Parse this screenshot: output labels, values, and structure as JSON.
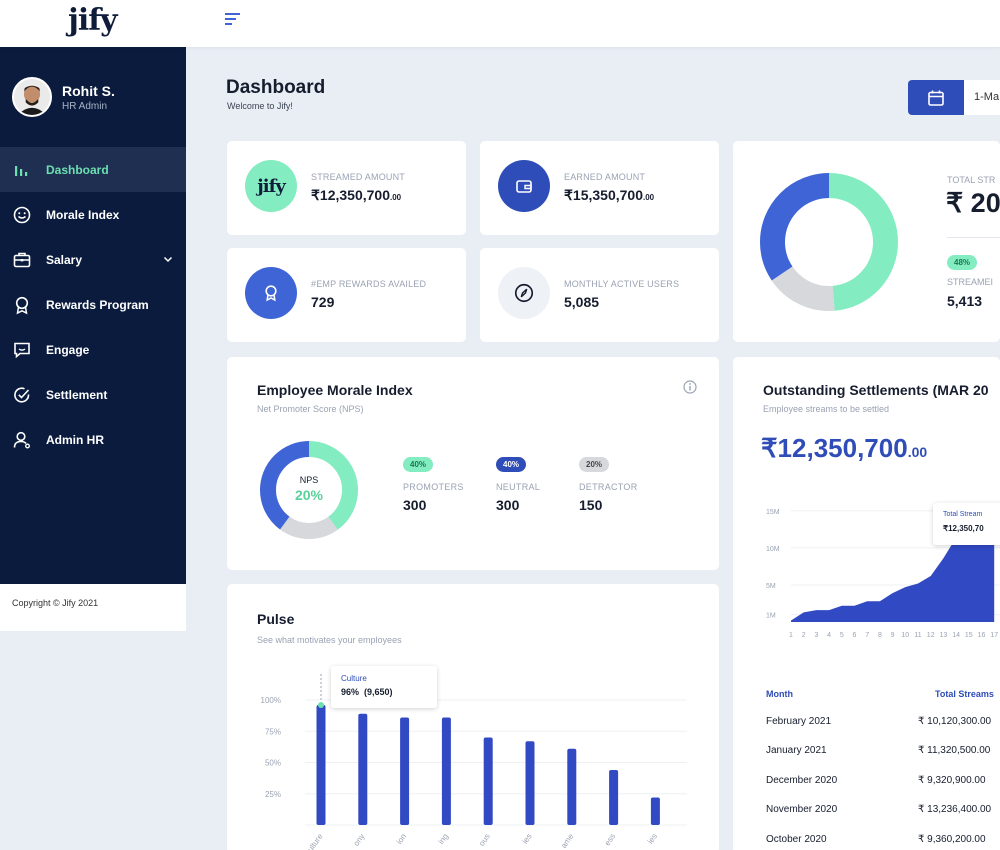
{
  "app": {
    "logo": "jify"
  },
  "sidebar": {
    "profile": {
      "name": "Rohit S.",
      "role": "HR Admin"
    },
    "items": [
      {
        "label": "Dashboard",
        "icon": "bar-chart-icon",
        "active": true
      },
      {
        "label": "Morale Index",
        "icon": "smiley-icon"
      },
      {
        "label": "Salary",
        "icon": "briefcase-icon",
        "has_submenu": true
      },
      {
        "label": "Rewards Program",
        "icon": "award-icon"
      },
      {
        "label": "Engage",
        "icon": "chat-icon"
      },
      {
        "label": "Settlement",
        "icon": "check-circle-icon"
      },
      {
        "label": "Admin HR",
        "icon": "user-icon"
      }
    ],
    "copyright": "Copyright © Jify 2021"
  },
  "header": {
    "title": "Dashboard",
    "subtitle": "Welcome to Jify!",
    "date_range": "1-Ma"
  },
  "stats": [
    {
      "label": "STREAMED AMOUNT",
      "value": "₹12,350,700",
      "decimals": ".00",
      "icon": "jify-logo-icon",
      "color": "#83ecc0"
    },
    {
      "label": "EARNED AMOUNT",
      "value": "₹15,350,700",
      "decimals": ".00",
      "icon": "wallet-icon",
      "color": "#2f4db8"
    },
    {
      "label": "#EMP REWARDS AVAILED",
      "value": "729",
      "icon": "award-icon",
      "color": "#3f64d6"
    },
    {
      "label": "MONTHLY ACTIVE USERS",
      "value": "5,085",
      "icon": "compass-icon",
      "color": "#eef1f6"
    }
  ],
  "total_streamed": {
    "label": "TOTAL STR",
    "value": "₹ 20,",
    "pill": "48%",
    "streamed_label": "STREAMEI",
    "streamed_value": "5,413"
  },
  "morale": {
    "title": "Employee Morale Index",
    "subtitle": "Net Promoter Score (NPS)",
    "nps_label": "NPS",
    "nps_value": "20%",
    "metrics": [
      {
        "pill": "40%",
        "label": "PROMOTERS",
        "value": "300",
        "color": "#83ecc0",
        "text_color": "#18794e"
      },
      {
        "pill": "40%",
        "label": "NEUTRAL",
        "value": "300",
        "color": "#2f4db8",
        "text_color": "#ffffff"
      },
      {
        "pill": "20%",
        "label": "DETRACTOR",
        "value": "150",
        "color": "#d6d8dc",
        "text_color": "#444444"
      }
    ]
  },
  "settlements": {
    "title": "Outstanding Settlements (MAR 20",
    "subtitle": "Employee streams to be settled",
    "amount_symbol": "₹",
    "amount": "12,350,700",
    "amount_decimals": ".00",
    "tooltip": {
      "label": "Total Stream",
      "value": "₹12,350,70"
    },
    "y_ticks": [
      "15M",
      "10M",
      "5M",
      "1M"
    ],
    "x_ticks": [
      "1",
      "2",
      "3",
      "4",
      "5",
      "6",
      "7",
      "8",
      "9",
      "10",
      "11",
      "12",
      "13",
      "14",
      "15",
      "16",
      "17"
    ],
    "table": {
      "col_month": "Month",
      "col_total": "Total Streams",
      "rows": [
        {
          "month": "February 2021",
          "total": "₹ 10,120,300.00"
        },
        {
          "month": "January 2021",
          "total": "₹ 11,320,500.00"
        },
        {
          "month": "December 2020",
          "total": "₹ 9,320,900.00"
        },
        {
          "month": "November 2020",
          "total": "₹ 13,236,400.00"
        },
        {
          "month": "October 2020",
          "total": "₹ 9,360,200.00"
        }
      ]
    }
  },
  "pulse": {
    "title": "Pulse",
    "subtitle": "See what motivates your employees",
    "tooltip": {
      "label": "Culture",
      "value": "96%  (9,650)"
    },
    "y_ticks": [
      "100%",
      "75%",
      "50%",
      "25%"
    ],
    "x_labels": [
      "ulture",
      "ony",
      "ion",
      "ing",
      "ous",
      "ies",
      "ame",
      "ess",
      "ies"
    ]
  },
  "chart_data": [
    {
      "type": "bar",
      "title": "Pulse",
      "y_ticks": [
        "100%",
        "75%",
        "50%",
        "25%"
      ],
      "categories": [
        "ulture",
        "ony",
        "ion",
        "ing",
        "ous",
        "ies",
        "ame",
        "ess",
        "ies"
      ],
      "values": [
        96,
        89,
        86,
        86,
        70,
        67,
        61,
        44,
        22
      ],
      "ylim": [
        0,
        100
      ]
    },
    {
      "type": "area",
      "title": "Outstanding Settlements (MAR 20",
      "y_ticks": [
        "15M",
        "10M",
        "5M",
        "1M"
      ],
      "x": [
        1,
        2,
        3,
        4,
        5,
        6,
        7,
        8,
        9,
        10,
        11,
        12,
        13,
        14,
        15,
        16,
        17
      ],
      "values": [
        0.2,
        1.3,
        1.6,
        1.6,
        2.2,
        2.2,
        2.8,
        2.8,
        3.9,
        4.7,
        5.2,
        6.2,
        8.6,
        11.4,
        11.7,
        12.1,
        12.35
      ],
      "ylim": [
        0,
        17
      ]
    }
  ],
  "colors": {
    "primary": "#2f4db8",
    "accent": "#83ecc0",
    "sidebar": "#0a1b3d",
    "muted": "#d6d8dc"
  }
}
